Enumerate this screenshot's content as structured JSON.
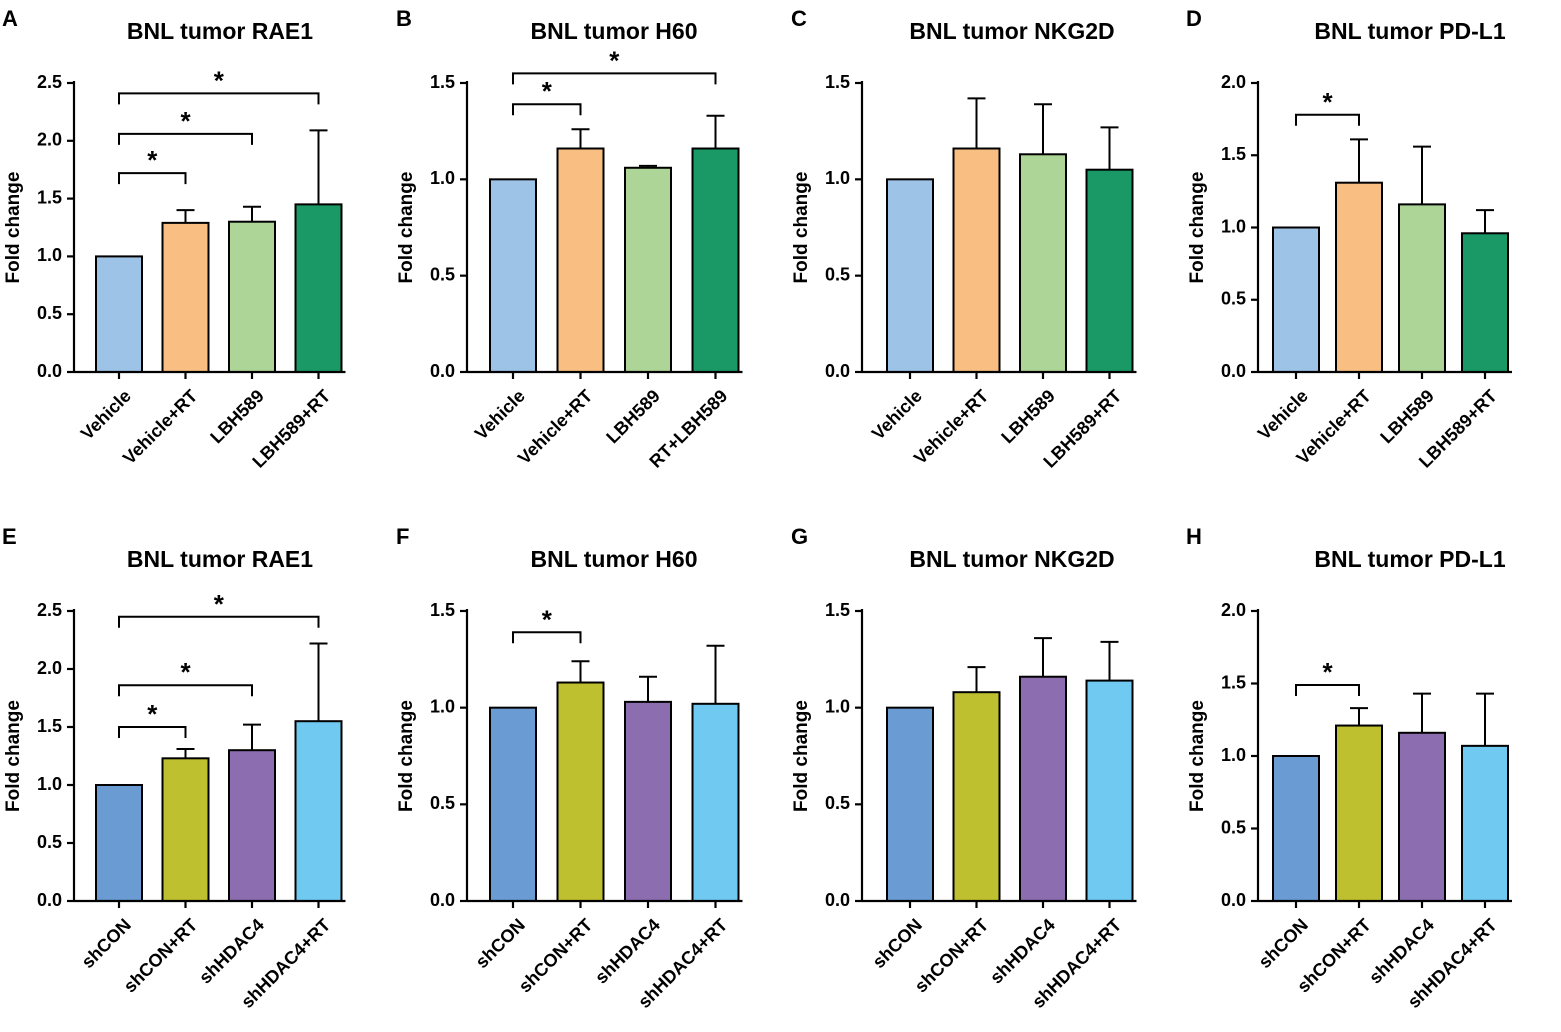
{
  "figure": {
    "background": "#ffffff"
  },
  "chart_data": [
    {
      "panel": "A",
      "type": "bar",
      "title": "BNL tumor RAE1",
      "xlabel": "",
      "ylabel": "Fold change",
      "ylim": [
        0,
        2.5
      ],
      "yticks": [
        "0.0",
        "0.5",
        "1.0",
        "1.5",
        "2.0",
        "2.5"
      ],
      "categories": [
        "Vehicle",
        "Vehicle+RT",
        "LBH589",
        "LBH589+RT"
      ],
      "values": [
        1.0,
        1.29,
        1.3,
        1.45
      ],
      "errors": [
        0,
        0.11,
        0.13,
        0.64
      ],
      "colors": [
        "#9DC3E6",
        "#F9BE81",
        "#ADD598",
        "#1A9966"
      ],
      "significance": [
        {
          "from": 0,
          "to": 1,
          "y": 1.72,
          "label": "*"
        },
        {
          "from": 0,
          "to": 2,
          "y": 2.06,
          "label": "*"
        },
        {
          "from": 0,
          "to": 3,
          "y": 2.41,
          "label": "*"
        }
      ]
    },
    {
      "panel": "B",
      "type": "bar",
      "title": "BNL tumor H60",
      "xlabel": "",
      "ylabel": "Fold change",
      "ylim": [
        0,
        1.5
      ],
      "yticks": [
        "0.0",
        "0.5",
        "1.0",
        "1.5"
      ],
      "categories": [
        "Vehicle",
        "Vehicle+RT",
        "LBH589",
        "RT+LBH589"
      ],
      "values": [
        1.0,
        1.16,
        1.06,
        1.16
      ],
      "errors": [
        0,
        0.1,
        0.01,
        0.17
      ],
      "colors": [
        "#9DC3E6",
        "#F9BE81",
        "#ADD598",
        "#1A9966"
      ],
      "significance": [
        {
          "from": 0,
          "to": 1,
          "y": 1.39,
          "label": "*"
        },
        {
          "from": 0,
          "to": 3,
          "y": 1.55,
          "label": "*"
        }
      ]
    },
    {
      "panel": "C",
      "type": "bar",
      "title": "BNL tumor NKG2D",
      "xlabel": "",
      "ylabel": "Fold change",
      "ylim": [
        0,
        1.5
      ],
      "yticks": [
        "0.0",
        "0.5",
        "1.0",
        "1.5"
      ],
      "categories": [
        "Vehicle",
        "Vehicle+RT",
        "LBH589",
        "LBH589+RT"
      ],
      "values": [
        1.0,
        1.16,
        1.13,
        1.05
      ],
      "errors": [
        0,
        0.26,
        0.26,
        0.22
      ],
      "colors": [
        "#9DC3E6",
        "#F9BE81",
        "#ADD598",
        "#1A9966"
      ],
      "significance": []
    },
    {
      "panel": "D",
      "type": "bar",
      "title": "BNL tumor PD-L1",
      "xlabel": "",
      "ylabel": "Fold change",
      "ylim": [
        0,
        2.0
      ],
      "yticks": [
        "0.0",
        "0.5",
        "1.0",
        "1.5",
        "2.0"
      ],
      "categories": [
        "Vehicle",
        "Vehicle+RT",
        "LBH589",
        "LBH589+RT"
      ],
      "values": [
        1.0,
        1.31,
        1.16,
        0.96
      ],
      "errors": [
        0,
        0.3,
        0.4,
        0.16
      ],
      "colors": [
        "#9DC3E6",
        "#F9BE81",
        "#ADD598",
        "#1A9966"
      ],
      "significance": [
        {
          "from": 0,
          "to": 1,
          "y": 1.78,
          "label": "*"
        }
      ]
    },
    {
      "panel": "E",
      "type": "bar",
      "title": "BNL tumor RAE1",
      "xlabel": "",
      "ylabel": "Fold change",
      "ylim": [
        0,
        2.5
      ],
      "yticks": [
        "0.0",
        "0.5",
        "1.0",
        "1.5",
        "2.0",
        "2.5"
      ],
      "categories": [
        "shCON",
        "shCON+RT",
        "shHDAC4",
        "shHDAC4+RT"
      ],
      "values": [
        1.0,
        1.23,
        1.3,
        1.55
      ],
      "errors": [
        0,
        0.08,
        0.22,
        0.67
      ],
      "colors": [
        "#6A9BD2",
        "#BFC02F",
        "#8C6DB0",
        "#70C9F0"
      ],
      "significance": [
        {
          "from": 0,
          "to": 1,
          "y": 1.5,
          "label": "*"
        },
        {
          "from": 0,
          "to": 2,
          "y": 1.86,
          "label": "*"
        },
        {
          "from": 0,
          "to": 3,
          "y": 2.45,
          "label": "*"
        }
      ]
    },
    {
      "panel": "F",
      "type": "bar",
      "title": "BNL tumor H60",
      "xlabel": "",
      "ylabel": "Fold change",
      "ylim": [
        0,
        1.5
      ],
      "yticks": [
        "0.0",
        "0.5",
        "1.0",
        "1.5"
      ],
      "categories": [
        "shCON",
        "shCON+RT",
        "shHDAC4",
        "shHDAC4+RT"
      ],
      "values": [
        1.0,
        1.13,
        1.03,
        1.02
      ],
      "errors": [
        0,
        0.11,
        0.13,
        0.3
      ],
      "colors": [
        "#6A9BD2",
        "#BFC02F",
        "#8C6DB0",
        "#70C9F0"
      ],
      "significance": [
        {
          "from": 0,
          "to": 1,
          "y": 1.39,
          "label": "*"
        }
      ]
    },
    {
      "panel": "G",
      "type": "bar",
      "title": "BNL tumor NKG2D",
      "xlabel": "",
      "ylabel": "Fold change",
      "ylim": [
        0,
        1.5
      ],
      "yticks": [
        "0.0",
        "0.5",
        "1.0",
        "1.5"
      ],
      "categories": [
        "shCON",
        "shCON+RT",
        "shHDAC4",
        "shHDAC4+RT"
      ],
      "values": [
        1.0,
        1.08,
        1.16,
        1.14
      ],
      "errors": [
        0,
        0.13,
        0.2,
        0.2
      ],
      "colors": [
        "#6A9BD2",
        "#BFC02F",
        "#8C6DB0",
        "#70C9F0"
      ],
      "significance": []
    },
    {
      "panel": "H",
      "type": "bar",
      "title": "BNL tumor PD-L1",
      "xlabel": "",
      "ylabel": "Fold change",
      "ylim": [
        0,
        2.0
      ],
      "yticks": [
        "0.0",
        "0.5",
        "1.0",
        "1.5",
        "2.0"
      ],
      "categories": [
        "shCON",
        "shCON+RT",
        "shHDAC4",
        "shHDAC4+RT"
      ],
      "values": [
        1.0,
        1.21,
        1.16,
        1.07
      ],
      "errors": [
        0,
        0.12,
        0.27,
        0.36
      ],
      "colors": [
        "#6A9BD2",
        "#BFC02F",
        "#8C6DB0",
        "#70C9F0"
      ],
      "significance": [
        {
          "from": 0,
          "to": 1,
          "y": 1.49,
          "label": "*"
        }
      ]
    }
  ]
}
